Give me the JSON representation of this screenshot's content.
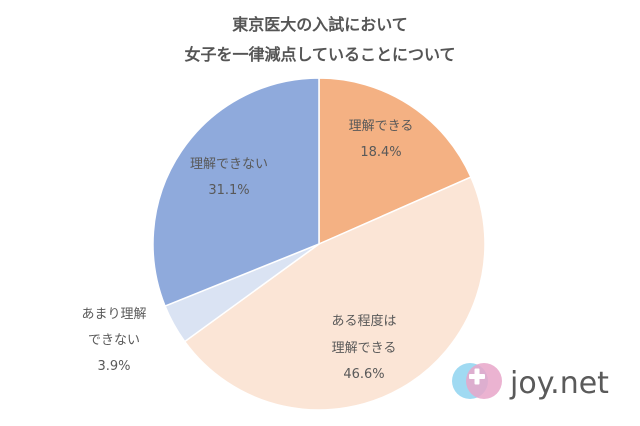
{
  "chart_data": {
    "type": "pie",
    "title_lines": [
      "東京医大の入試において",
      "女子を一律減点していることについて"
    ],
    "slices": [
      {
        "label_lines": [
          "理解できる"
        ],
        "value": 18.4,
        "value_text": "18.4%",
        "color": "#F4B183"
      },
      {
        "label_lines": [
          "ある程度は",
          "理解できる"
        ],
        "value": 46.6,
        "value_text": "46.6%",
        "color": "#FBE5D6"
      },
      {
        "label_lines": [
          "あまり理解",
          "できない"
        ],
        "value": 3.9,
        "value_text": "3.9%",
        "color": "#DAE3F3"
      },
      {
        "label_lines": [
          "理解できない"
        ],
        "value": 31.1,
        "value_text": "31.1%",
        "color": "#8FAADC"
      }
    ]
  },
  "brand": {
    "name": "joy.net",
    "colors": {
      "circle_left": "#8FD3F0",
      "circle_right": "#E8A6C9",
      "cross": "#FFFFFF"
    }
  }
}
